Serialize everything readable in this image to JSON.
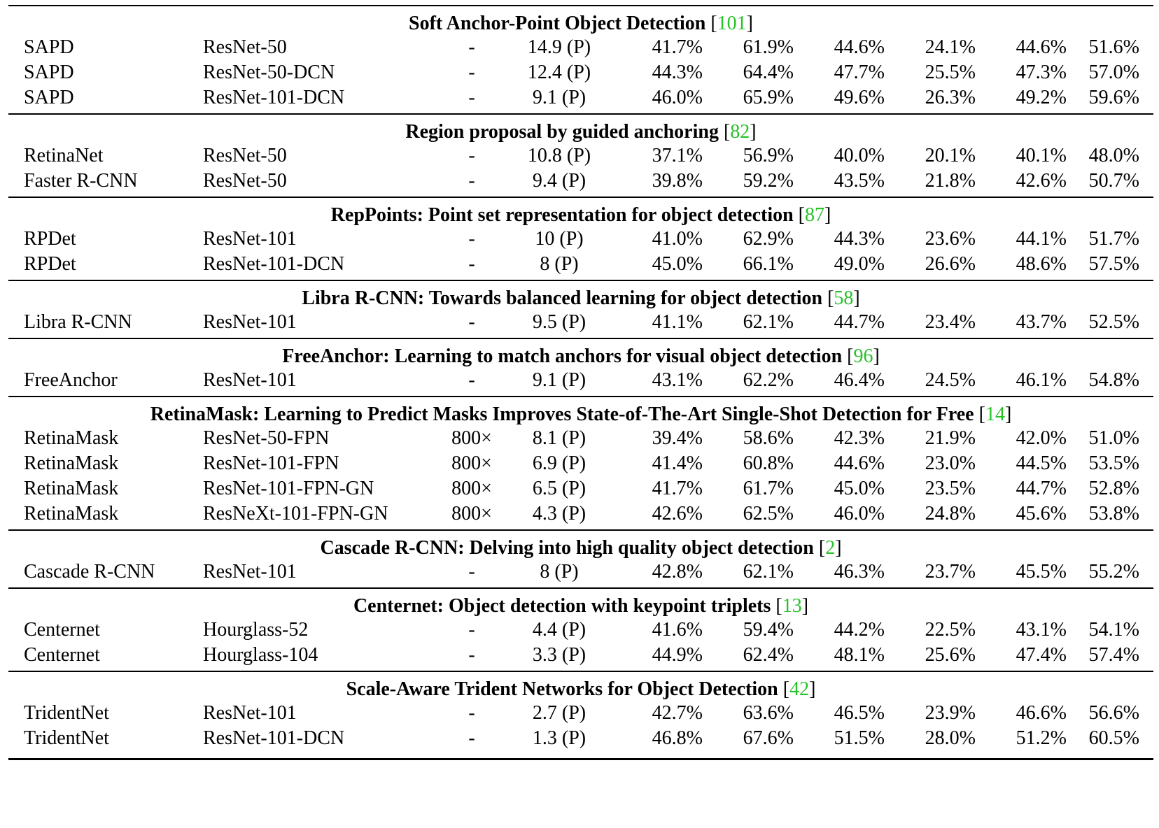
{
  "colors": {
    "reference": "#27c227",
    "text": "#000000",
    "rule": "#000000"
  },
  "sections": [
    {
      "title": "Soft Anchor-Point Object Detection",
      "ref": "101",
      "rows": [
        {
          "method": "SAPD",
          "backbone": "ResNet-50",
          "size": "-",
          "fps": "14.9 (P)",
          "m1": "41.7%",
          "m2": "61.9%",
          "m3": "44.6%",
          "m4": "24.1%",
          "m5": "44.6%",
          "m6": "51.6%"
        },
        {
          "method": "SAPD",
          "backbone": "ResNet-50-DCN",
          "size": "-",
          "fps": "12.4 (P)",
          "m1": "44.3%",
          "m2": "64.4%",
          "m3": "47.7%",
          "m4": "25.5%",
          "m5": "47.3%",
          "m6": "57.0%"
        },
        {
          "method": "SAPD",
          "backbone": "ResNet-101-DCN",
          "size": "-",
          "fps": "9.1 (P)",
          "m1": "46.0%",
          "m2": "65.9%",
          "m3": "49.6%",
          "m4": "26.3%",
          "m5": "49.2%",
          "m6": "59.6%"
        }
      ]
    },
    {
      "title": "Region proposal by guided anchoring",
      "ref": "82",
      "rows": [
        {
          "method": "RetinaNet",
          "backbone": "ResNet-50",
          "size": "-",
          "fps": "10.8 (P)",
          "m1": "37.1%",
          "m2": "56.9%",
          "m3": "40.0%",
          "m4": "20.1%",
          "m5": "40.1%",
          "m6": "48.0%"
        },
        {
          "method": "Faster R-CNN",
          "backbone": "ResNet-50",
          "size": "-",
          "fps": "9.4 (P)",
          "m1": "39.8%",
          "m2": "59.2%",
          "m3": "43.5%",
          "m4": "21.8%",
          "m5": "42.6%",
          "m6": "50.7%"
        }
      ]
    },
    {
      "title": "RepPoints: Point set representation for object detection",
      "ref": "87",
      "rows": [
        {
          "method": "RPDet",
          "backbone": "ResNet-101",
          "size": "-",
          "fps": "10 (P)",
          "m1": "41.0%",
          "m2": "62.9%",
          "m3": "44.3%",
          "m4": "23.6%",
          "m5": "44.1%",
          "m6": "51.7%"
        },
        {
          "method": "RPDet",
          "backbone": "ResNet-101-DCN",
          "size": "-",
          "fps": "8 (P)",
          "m1": "45.0%",
          "m2": "66.1%",
          "m3": "49.0%",
          "m4": "26.6%",
          "m5": "48.6%",
          "m6": "57.5%"
        }
      ]
    },
    {
      "title": "Libra R-CNN: Towards balanced learning for object detection",
      "ref": "58",
      "rows": [
        {
          "method": "Libra R-CNN",
          "backbone": "ResNet-101",
          "size": "-",
          "fps": "9.5 (P)",
          "m1": "41.1%",
          "m2": "62.1%",
          "m3": "44.7%",
          "m4": "23.4%",
          "m5": "43.7%",
          "m6": "52.5%"
        }
      ]
    },
    {
      "title": "FreeAnchor: Learning to match anchors for visual object detection",
      "ref": "96",
      "rows": [
        {
          "method": "FreeAnchor",
          "backbone": "ResNet-101",
          "size": "-",
          "fps": "9.1 (P)",
          "m1": "43.1%",
          "m2": "62.2%",
          "m3": "46.4%",
          "m4": "24.5%",
          "m5": "46.1%",
          "m6": "54.8%"
        }
      ]
    },
    {
      "title": "RetinaMask: Learning to Predict Masks Improves State-of-The-Art Single-Shot Detection for Free",
      "ref": "14",
      "rows": [
        {
          "method": "RetinaMask",
          "backbone": "ResNet-50-FPN",
          "size": "800×",
          "fps": "8.1 (P)",
          "m1": "39.4%",
          "m2": "58.6%",
          "m3": "42.3%",
          "m4": "21.9%",
          "m5": "42.0%",
          "m6": "51.0%"
        },
        {
          "method": "RetinaMask",
          "backbone": "ResNet-101-FPN",
          "size": "800×",
          "fps": "6.9 (P)",
          "m1": "41.4%",
          "m2": "60.8%",
          "m3": "44.6%",
          "m4": "23.0%",
          "m5": "44.5%",
          "m6": "53.5%"
        },
        {
          "method": "RetinaMask",
          "backbone": "ResNet-101-FPN-GN",
          "size": "800×",
          "fps": "6.5 (P)",
          "m1": "41.7%",
          "m2": "61.7%",
          "m3": "45.0%",
          "m4": "23.5%",
          "m5": "44.7%",
          "m6": "52.8%"
        },
        {
          "method": "RetinaMask",
          "backbone": "ResNeXt-101-FPN-GN",
          "size": "800×",
          "fps": "4.3 (P)",
          "m1": "42.6%",
          "m2": "62.5%",
          "m3": "46.0%",
          "m4": "24.8%",
          "m5": "45.6%",
          "m6": "53.8%"
        }
      ]
    },
    {
      "title": "Cascade R-CNN: Delving into high quality object detection",
      "ref": "2",
      "rows": [
        {
          "method": "Cascade R-CNN",
          "backbone": "ResNet-101",
          "size": "-",
          "fps": "8 (P)",
          "m1": "42.8%",
          "m2": "62.1%",
          "m3": "46.3%",
          "m4": "23.7%",
          "m5": "45.5%",
          "m6": "55.2%"
        }
      ]
    },
    {
      "title": "Centernet: Object detection with keypoint triplets",
      "ref": "13",
      "rows": [
        {
          "method": "Centernet",
          "backbone": "Hourglass-52",
          "size": "-",
          "fps": "4.4 (P)",
          "m1": "41.6%",
          "m2": "59.4%",
          "m3": "44.2%",
          "m4": "22.5%",
          "m5": "43.1%",
          "m6": "54.1%"
        },
        {
          "method": "Centernet",
          "backbone": "Hourglass-104",
          "size": "-",
          "fps": "3.3 (P)",
          "m1": "44.9%",
          "m2": "62.4%",
          "m3": "48.1%",
          "m4": "25.6%",
          "m5": "47.4%",
          "m6": "57.4%"
        }
      ]
    },
    {
      "title": "Scale-Aware Trident Networks for Object Detection",
      "ref": "42",
      "rows": [
        {
          "method": "TridentNet",
          "backbone": "ResNet-101",
          "size": "-",
          "fps": "2.7 (P)",
          "m1": "42.7%",
          "m2": "63.6%",
          "m3": "46.5%",
          "m4": "23.9%",
          "m5": "46.6%",
          "m6": "56.6%"
        },
        {
          "method": "TridentNet",
          "backbone": "ResNet-101-DCN",
          "size": "-",
          "fps": "1.3 (P)",
          "m1": "46.8%",
          "m2": "67.6%",
          "m3": "51.5%",
          "m4": "28.0%",
          "m5": "51.2%",
          "m6": "60.5%"
        }
      ]
    }
  ]
}
